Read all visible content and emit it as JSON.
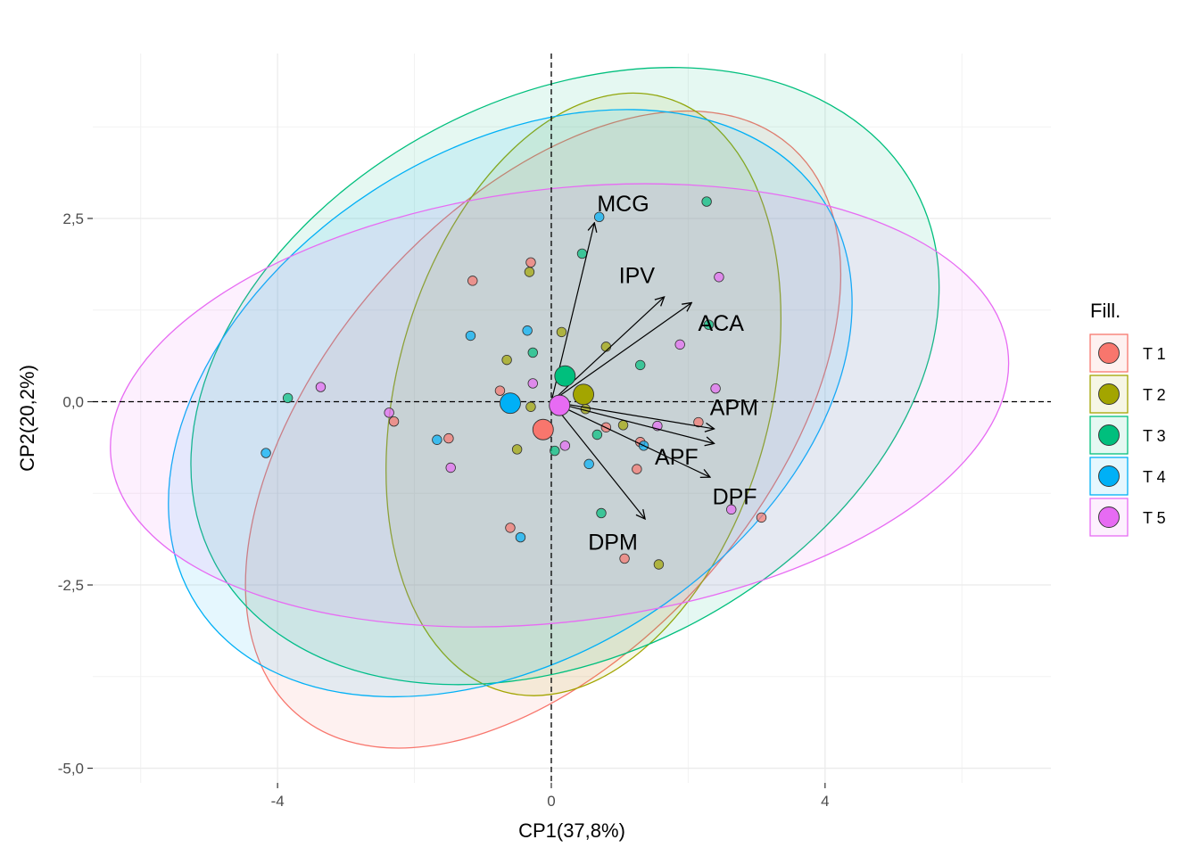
{
  "chart_data": {
    "type": "scatter",
    "xlabel": "CP1(37,8%)",
    "ylabel": "CP2(20,2%)",
    "xlim": [
      -6.7,
      7.3
    ],
    "ylim": [
      -5.2,
      4.75
    ],
    "x_ticks": [
      {
        "value": -4,
        "label": "-4"
      },
      {
        "value": 0,
        "label": "0"
      },
      {
        "value": 4,
        "label": "4"
      }
    ],
    "y_ticks": [
      {
        "value": 2.5,
        "label": "2,5"
      },
      {
        "value": 0,
        "label": "0,0"
      },
      {
        "value": -2.5,
        "label": "-2,5"
      },
      {
        "value": -5,
        "label": "-5,0"
      }
    ],
    "minor_x": [
      -6,
      -2,
      2,
      6
    ],
    "minor_y": [
      3.75,
      1.25,
      -1.25,
      -3.75
    ],
    "grid": true,
    "legend": {
      "title": "Fill.",
      "position": "right"
    },
    "series": [
      {
        "name": "T 1",
        "color": "#F8766D",
        "points": [
          [
            -1.15,
            1.65
          ],
          [
            -0.3,
            1.9
          ],
          [
            -0.75,
            0.15
          ],
          [
            -2.3,
            -0.27
          ],
          [
            -1.5,
            -0.5
          ],
          [
            1.25,
            -0.92
          ],
          [
            3.07,
            -1.58
          ],
          [
            -0.6,
            -1.72
          ],
          [
            1.07,
            -2.14
          ],
          [
            2.15,
            -0.28
          ],
          [
            0.8,
            -0.35
          ],
          [
            1.3,
            -0.55
          ]
        ],
        "centroid": [
          -0.12,
          -0.38
        ],
        "ellipse": {
          "cx": -0.12,
          "cy": -0.38,
          "rx": 5.5,
          "ry": 3.0,
          "angle": -49
        }
      },
      {
        "name": "T 2",
        "color": "#A3A500",
        "points": [
          [
            -0.32,
            1.77
          ],
          [
            -0.65,
            0.57
          ],
          [
            0.15,
            0.95
          ],
          [
            0.8,
            0.75
          ],
          [
            -0.3,
            -0.07
          ],
          [
            1.05,
            -0.32
          ],
          [
            0.5,
            -0.1
          ],
          [
            -0.5,
            -0.65
          ],
          [
            1.57,
            -2.22
          ]
        ],
        "centroid": [
          0.47,
          0.1
        ],
        "ellipse": {
          "cx": 0.47,
          "cy": 0.1,
          "rx": 4.5,
          "ry": 2.55,
          "angle": -75
        }
      },
      {
        "name": "T 3",
        "color": "#00BF7D",
        "points": [
          [
            2.27,
            2.73
          ],
          [
            0.45,
            2.02
          ],
          [
            -0.27,
            0.67
          ],
          [
            1.3,
            0.5
          ],
          [
            -3.85,
            0.05
          ],
          [
            0.67,
            -0.45
          ],
          [
            0.05,
            -0.67
          ],
          [
            0.73,
            -1.52
          ],
          [
            2.3,
            1.05
          ]
        ],
        "centroid": [
          0.2,
          0.35
        ],
        "ellipse": {
          "cx": 0.2,
          "cy": 0.35,
          "rx": 5.8,
          "ry": 3.8,
          "angle": -28
        }
      },
      {
        "name": "T 4",
        "color": "#00B0F6",
        "points": [
          [
            0.7,
            2.52
          ],
          [
            -0.35,
            0.97
          ],
          [
            -1.18,
            0.9
          ],
          [
            -4.17,
            -0.7
          ],
          [
            -1.67,
            -0.52
          ],
          [
            1.35,
            -0.6
          ],
          [
            0.55,
            -0.85
          ],
          [
            -0.45,
            -1.85
          ]
        ],
        "centroid": [
          -0.6,
          -0.02
        ],
        "ellipse": {
          "cx": -0.6,
          "cy": -0.02,
          "rx": 5.45,
          "ry": 3.45,
          "angle": -33
        }
      },
      {
        "name": "T 5",
        "color": "#E76BF3",
        "points": [
          [
            2.45,
            1.7
          ],
          [
            1.88,
            0.78
          ],
          [
            -3.37,
            0.2
          ],
          [
            -2.37,
            -0.15
          ],
          [
            -0.27,
            0.25
          ],
          [
            1.55,
            -0.33
          ],
          [
            0.2,
            -0.6
          ],
          [
            -1.47,
            -0.9
          ],
          [
            2.63,
            -1.47
          ],
          [
            2.4,
            0.18
          ]
        ],
        "centroid": [
          0.12,
          -0.05
        ],
        "ellipse": {
          "cx": 0.12,
          "cy": -0.05,
          "rx": 6.6,
          "ry": 2.95,
          "angle": -7
        }
      }
    ],
    "vectors": [
      {
        "name": "MCG",
        "x": 0.63,
        "y": 2.44,
        "label_x": 1.05,
        "label_y": 2.68
      },
      {
        "name": "IPV",
        "x": 1.65,
        "y": 1.43,
        "label_x": 1.25,
        "label_y": 1.7
      },
      {
        "name": "ACA",
        "x": 2.05,
        "y": 1.35,
        "label_x": 2.48,
        "label_y": 1.05
      },
      {
        "name": "APM",
        "x": 2.38,
        "y": -0.37,
        "label_x": 2.67,
        "label_y": -0.1
      },
      {
        "name": "APF",
        "x": 2.38,
        "y": -0.57,
        "label_x": 1.83,
        "label_y": -0.78
      },
      {
        "name": "DPF",
        "x": 2.32,
        "y": -1.03,
        "label_x": 2.68,
        "label_y": -1.32
      },
      {
        "name": "DPM",
        "x": 1.37,
        "y": -1.6,
        "label_x": 0.9,
        "label_y": -1.94
      }
    ]
  }
}
